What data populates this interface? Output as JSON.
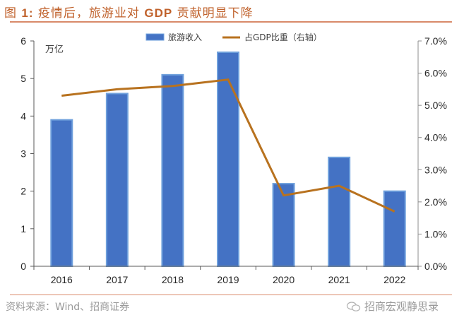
{
  "header": {
    "title_prefix": "图 ",
    "title_num": "1:",
    "title_text": " 疫情后，旅游业对 ",
    "title_gdp": "GDP",
    "title_suffix": " 贡献明显下降"
  },
  "footer": {
    "source": "资料来源：Wind、招商证券",
    "brand": "招商宏观静思录",
    "brand_icon": "wechat-icon"
  },
  "colors": {
    "bar": "#4472c4",
    "bar_edge": "#6fa0dc",
    "line": "#b8721f",
    "axis": "#595959",
    "text": "#262626"
  },
  "chart_data": {
    "type": "bar+line",
    "title": "疫情后，旅游业对 GDP 贡献明显下降",
    "categories": [
      "2016",
      "2017",
      "2018",
      "2019",
      "2020",
      "2021",
      "2022"
    ],
    "series": [
      {
        "name": "旅游收入",
        "type": "bar",
        "axis": "left",
        "values": [
          3.9,
          4.6,
          5.1,
          5.7,
          2.2,
          2.9,
          2.0
        ]
      },
      {
        "name": "占GDP比重（右轴）",
        "type": "line",
        "axis": "right",
        "values": [
          5.3,
          5.5,
          5.6,
          5.8,
          2.2,
          2.5,
          1.7
        ]
      }
    ],
    "left_axis": {
      "label": "万亿",
      "ylim": [
        0,
        6
      ],
      "ticks": [
        "0",
        "1",
        "2",
        "3",
        "4",
        "5",
        "6"
      ]
    },
    "right_axis": {
      "ylim": [
        0,
        7
      ],
      "ticks": [
        "0.0%",
        "1.0%",
        "2.0%",
        "3.0%",
        "4.0%",
        "5.0%",
        "6.0%",
        "7.0%"
      ]
    },
    "legend": {
      "position": "top-center",
      "entries": [
        "旅游收入",
        "占GDP比重（右轴）"
      ]
    },
    "grid": false
  }
}
